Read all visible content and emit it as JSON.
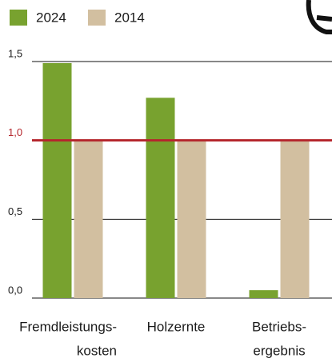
{
  "chart_data": {
    "type": "bar",
    "categories": [
      [
        "Fremdleistungs-",
        "kosten"
      ],
      [
        "Holzernte"
      ],
      [
        "Betriebs-",
        "ergebnis"
      ]
    ],
    "series": [
      {
        "name": "2024",
        "color": "#78a22f",
        "values": [
          1.49,
          1.27,
          0.05
        ]
      },
      {
        "name": "2014",
        "color": "#d2bfa0",
        "values": [
          1.0,
          1.0,
          1.0
        ]
      }
    ],
    "ylim": [
      0,
      1.5
    ],
    "yticks": [
      {
        "value": 0,
        "label": "0,0"
      },
      {
        "value": 0.5,
        "label": "0,5"
      },
      {
        "value": 1,
        "label": "1,0"
      },
      {
        "value": 1.5,
        "label": "1,5"
      }
    ],
    "grid": true,
    "reference_line": {
      "value": 1,
      "color": "#b5272d"
    },
    "legend": "top"
  }
}
